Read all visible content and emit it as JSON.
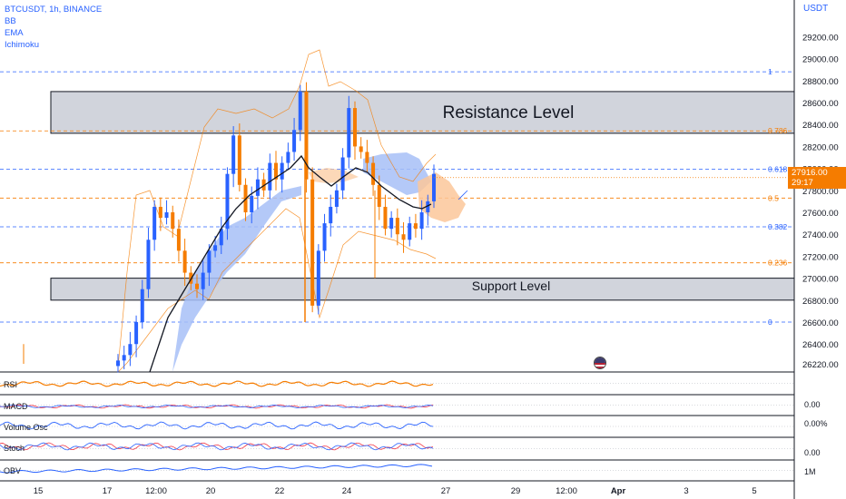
{
  "symbol": "BTCUSDT, 1h, BINANCE",
  "indicators": [
    "BB",
    "EMA",
    "Ichimoku"
  ],
  "currency": "USDT",
  "last_price": "27916.00",
  "countdown": "29:17",
  "annotations": {
    "resistance": "Resistance Level",
    "support": "Support Level"
  },
  "fib_levels": [
    {
      "label": "1",
      "price": 28880
    },
    {
      "label": "0.786",
      "price": 28342
    },
    {
      "label": "0.618",
      "price": 27992
    },
    {
      "label": "0.5",
      "price": 27730
    },
    {
      "label": "0.382",
      "price": 27468
    },
    {
      "label": "0.236",
      "price": 27140
    },
    {
      "label": "0",
      "price": 26600
    }
  ],
  "price_axis": [
    "29200.00",
    "29000.00",
    "28800.00",
    "28600.00",
    "28400.00",
    "28200.00",
    "28000.00",
    "27800.00",
    "27600.00",
    "27400.00",
    "27200.00",
    "27000.00",
    "26800.00",
    "26600.00",
    "26400.00",
    "26220.00"
  ],
  "sub_panes": [
    {
      "name": "RSI",
      "axis": ""
    },
    {
      "name": "MACD",
      "axis": "0.00"
    },
    {
      "name": "Volume Osc",
      "axis": "0.00%"
    },
    {
      "name": "Stoch",
      "axis": "0.00"
    },
    {
      "name": "OBV",
      "axis": "1M"
    }
  ],
  "time_axis": [
    "15",
    "17",
    "12:00",
    "20",
    "22",
    "24",
    "27",
    "29",
    "12:00",
    "Apr",
    "3",
    "5"
  ],
  "colors": {
    "up": "#2962ff",
    "down": "#f57c00",
    "fib_blue": "#2962ff",
    "fib_orange": "#f57c00",
    "cloud_blue": "#a7bff7",
    "cloud_orange": "#fbc79a",
    "ema": "#131722",
    "zone_fill": "#d1d4dc"
  },
  "chart_data": {
    "type": "candlestick",
    "title": "BTCUSDT, 1h, BINANCE",
    "ylim": [
      26150,
      29400
    ],
    "zones": [
      {
        "label": "Resistance Level",
        "price_top": 28700,
        "price_bottom": 28320
      },
      {
        "label": "Support Level",
        "price_top": 27000,
        "price_bottom": 26800
      }
    ],
    "closes": [
      26250,
      26300,
      26400,
      26600,
      26900,
      27350,
      27650,
      27550,
      27600,
      27450,
      27250,
      27050,
      26950,
      26900,
      27050,
      27250,
      27300,
      27450,
      27950,
      28300,
      27850,
      27600,
      27750,
      27900,
      27800,
      28050,
      27900,
      28050,
      28150,
      28350,
      28700,
      27900,
      26750,
      27250,
      27500,
      27650,
      27800,
      28100,
      28550,
      28200,
      28150,
      28050,
      27850,
      27650,
      27450,
      27550,
      27400,
      27350,
      27500,
      27450,
      27600,
      27700,
      27950
    ]
  }
}
